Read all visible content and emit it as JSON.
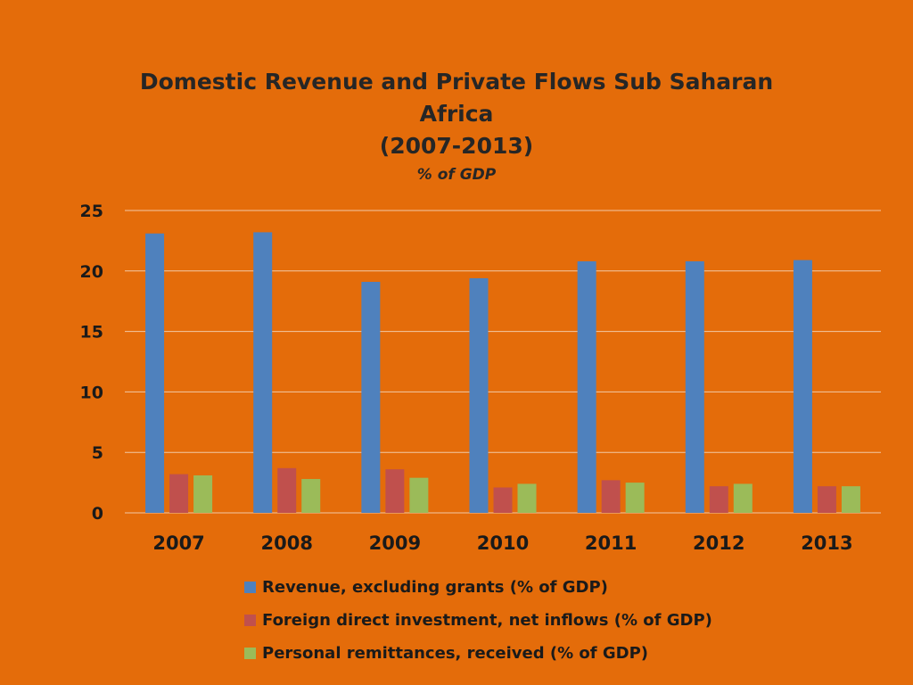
{
  "chart_data": {
    "type": "bar",
    "title_lines": [
      "Domestic Revenue and Private Flows Sub Saharan",
      "Africa",
      "(2007-2013)"
    ],
    "subtitle": "% of GDP",
    "categories": [
      "2007",
      "2008",
      "2009",
      "2010",
      "2011",
      "2012",
      "2013"
    ],
    "series": [
      {
        "name": "Revenue, excluding grants (% of GDP)",
        "color": "#4F81BD",
        "values": [
          23.1,
          23.2,
          19.1,
          19.4,
          20.8,
          20.8,
          20.9
        ]
      },
      {
        "name": "Foreign direct investment, net inflows (% of GDP)",
        "color": "#C0504D",
        "values": [
          3.2,
          3.7,
          3.6,
          2.1,
          2.7,
          2.2,
          2.2
        ]
      },
      {
        "name": "Personal remittances, received (% of GDP)",
        "color": "#9BBB59",
        "values": [
          3.1,
          2.8,
          2.9,
          2.4,
          2.5,
          2.4,
          2.2
        ]
      }
    ],
    "yticks": [
      "0",
      "5",
      "10",
      "15",
      "20",
      "25"
    ],
    "ylim": [
      0,
      25
    ],
    "grid": true,
    "legend_position": "bottom"
  }
}
